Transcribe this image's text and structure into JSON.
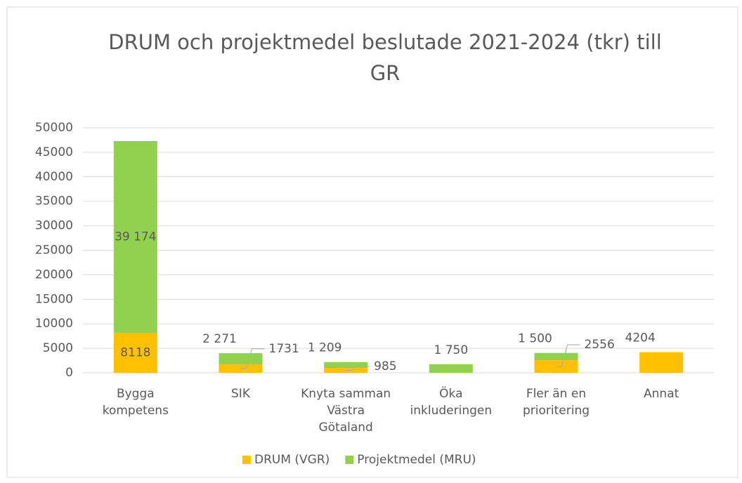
{
  "chart_data": {
    "type": "stacked-bar",
    "title": "DRUM och projektmedel beslutade 2021-2024 (tkr) till\nGR",
    "categories": [
      "Bygga\nkompetens",
      "SIK",
      "Knyta samman\nVästra\nGötaland",
      "Öka\ninkluderingen",
      "Fler än en\nprioritering",
      "Annat"
    ],
    "series": [
      {
        "name": "DRUM (VGR)",
        "color": "#FFC000",
        "values": [
          8118,
          1731,
          985,
          null,
          2556,
          4204
        ],
        "value_labels": [
          "8118",
          "1731",
          "985",
          null,
          "2556",
          "4204"
        ]
      },
      {
        "name": "Projektmedel (MRU)",
        "color": "#92D050",
        "values": [
          39174,
          2271,
          1209,
          1750,
          1500,
          null
        ],
        "value_labels": [
          "39 174",
          "2 271",
          "1 209",
          "1 750",
          "1 500",
          null
        ]
      }
    ],
    "ylim": [
      0,
      50000
    ],
    "yticks": [
      0,
      5000,
      10000,
      15000,
      20000,
      25000,
      30000,
      35000,
      40000,
      45000,
      50000
    ],
    "grid": true,
    "legend": "bottom"
  }
}
